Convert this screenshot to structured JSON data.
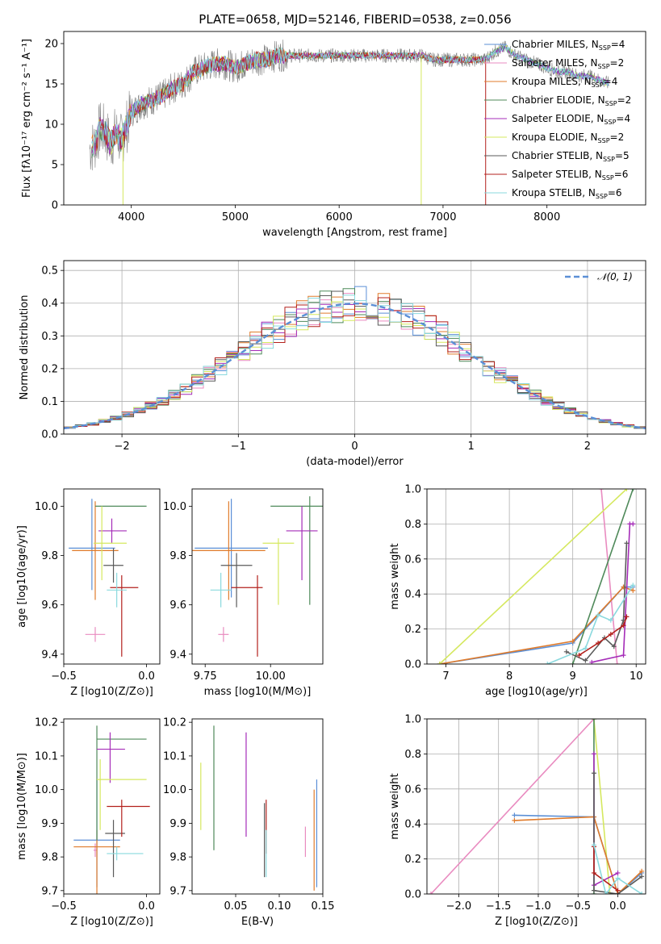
{
  "figure_title": "PLATE=0658, MJD=52146, FIBERID=0538, z=0.056",
  "colors": {
    "chabrier_miles": "#5b8fd6",
    "salpeter_miles": "#e98bc0",
    "kroupa_miles": "#e07b2b",
    "chabrier_elodie": "#4f8a5a",
    "salpeter_elodie": "#a52cb8",
    "kroupa_elodie": "#d5e85f",
    "chabrier_stelib": "#5a5a5a",
    "salpeter_stelib": "#b3201c",
    "kroupa_stelib": "#8ad9de",
    "data": "#808080",
    "normal": "#5b8fd6"
  },
  "chart_data": [
    {
      "id": "spectrum",
      "type": "line",
      "xlabel": "wavelength [Angstrom, rest frame]",
      "ylabel": "Flux [fλ10⁻¹⁷ erg cm⁻² s⁻¹ A⁻¹]",
      "xlim": [
        3350,
        8950
      ],
      "ylim": [
        0,
        21.5
      ],
      "xticks": [
        4000,
        5000,
        6000,
        7000,
        8000
      ],
      "yticks": [
        0,
        5,
        10,
        15,
        20
      ],
      "x": [
        3600,
        3650,
        3700,
        3750,
        3800,
        3850,
        3900,
        3950,
        4000,
        4100,
        4200,
        4300,
        4400,
        4500,
        4600,
        4700,
        4800,
        4900,
        5000,
        5100,
        5200,
        5300,
        5400,
        5500,
        5600,
        5700,
        5800,
        5900,
        6000,
        6100,
        6200,
        6300,
        6400,
        6500,
        6600,
        6700,
        6800,
        6900,
        7000,
        7100,
        7200,
        7300,
        7400,
        7500,
        7600,
        7700,
        7800,
        7900,
        8000,
        8100,
        8200,
        8300,
        8400,
        8500,
        8600
      ],
      "values": [
        7.0,
        7.5,
        9.5,
        9.0,
        7.5,
        9.0,
        8.0,
        9.5,
        11.5,
        12.5,
        13.0,
        13.5,
        14.5,
        15.0,
        16.5,
        17.0,
        17.5,
        17.5,
        17.0,
        17.5,
        18.0,
        18.0,
        18.5,
        18.5,
        18.5,
        18.5,
        18.5,
        18.5,
        18.5,
        18.5,
        18.5,
        18.5,
        18.5,
        18.5,
        18.5,
        18.5,
        18.5,
        18.0,
        18.0,
        18.0,
        18.0,
        18.0,
        18.0,
        19.0,
        19.5,
        18.5,
        18.0,
        17.5,
        17.0,
        16.5,
        16.5,
        16.0,
        16.0,
        15.5,
        15.0
      ],
      "legend": [
        {
          "label": "Chabrier MILES, N",
          "sub": "SSP",
          "tail": "=4",
          "color_key": "chabrier_miles"
        },
        {
          "label": "Salpeter MILES, N",
          "sub": "SSP",
          "tail": "=2",
          "color_key": "salpeter_miles"
        },
        {
          "label": "Kroupa MILES, N",
          "sub": "SSP",
          "tail": "=4",
          "color_key": "kroupa_miles"
        },
        {
          "label": "Chabrier ELODIE, N",
          "sub": "SSP",
          "tail": "=2",
          "color_key": "chabrier_elodie"
        },
        {
          "label": "Salpeter ELODIE, N",
          "sub": "SSP",
          "tail": "=4",
          "color_key": "salpeter_elodie"
        },
        {
          "label": "Kroupa ELODIE, N",
          "sub": "SSP",
          "tail": "=2",
          "color_key": "kroupa_elodie"
        },
        {
          "label": "Chabrier STELIB, N",
          "sub": "SSP",
          "tail": "=5",
          "color_key": "chabrier_stelib"
        },
        {
          "label": "Salpeter STELIB, N",
          "sub": "SSP",
          "tail": "=6",
          "color_key": "salpeter_stelib"
        },
        {
          "label": "Kroupa STELIB, N",
          "sub": "SSP",
          "tail": "=6",
          "color_key": "kroupa_stelib"
        }
      ],
      "legend_position": "upper right",
      "grid": false
    },
    {
      "id": "residuals",
      "type": "histogram",
      "xlabel": "(data-model)/error",
      "ylabel": "Normed distribution",
      "xlim": [
        -2.5,
        2.5
      ],
      "ylim": [
        0,
        0.53
      ],
      "xticks": [
        -2,
        -1,
        0,
        1,
        2
      ],
      "yticks": [
        0.0,
        0.1,
        0.2,
        0.3,
        0.4,
        0.5
      ],
      "bin_width": 0.1,
      "legend": [
        {
          "label": "𝒩(0, 1)",
          "color_key": "normal"
        }
      ],
      "legend_position": "upper right",
      "grid": true
    },
    {
      "id": "age_vs_Z",
      "type": "errorbar",
      "xlabel": "Z [log10(Z/Z⊙)]",
      "ylabel": "age  [log10(age/yr)]",
      "xlim": [
        -0.5,
        0.08
      ],
      "ylim": [
        9.36,
        10.07
      ],
      "xticks": [
        -0.5,
        0.0
      ],
      "yticks": [
        9.4,
        9.6,
        9.8,
        10.0
      ],
      "points": [
        {
          "color_key": "chabrier_miles",
          "x": -0.33,
          "xerr": [
            0.14,
            0.14
          ],
          "y": 9.83,
          "yerr": [
            0.17,
            0.2
          ]
        },
        {
          "color_key": "salpeter_miles",
          "x": -0.31,
          "xerr": [
            0.06,
            0.06
          ],
          "y": 9.48,
          "yerr": [
            0.03,
            0.03
          ]
        },
        {
          "color_key": "kroupa_miles",
          "x": -0.31,
          "xerr": [
            0.14,
            0.14
          ],
          "y": 9.82,
          "yerr": [
            0.2,
            0.2
          ]
        },
        {
          "color_key": "chabrier_elodie",
          "x": -0.18,
          "xerr": [
            0.13,
            0.18
          ],
          "y": 10.0,
          "yerr": [
            0.0,
            0.0
          ]
        },
        {
          "color_key": "salpeter_elodie",
          "x": -0.21,
          "xerr": [
            0.08,
            0.09
          ],
          "y": 9.9,
          "yerr": [
            0.05,
            0.05
          ]
        },
        {
          "color_key": "kroupa_elodie",
          "x": -0.27,
          "xerr": [
            0.05,
            0.15
          ],
          "y": 9.85,
          "yerr": [
            0.15,
            0.15
          ]
        },
        {
          "color_key": "chabrier_stelib",
          "x": -0.2,
          "xerr": [
            0.06,
            0.06
          ],
          "y": 9.76,
          "yerr": [
            0.07,
            0.07
          ]
        },
        {
          "color_key": "salpeter_stelib",
          "x": -0.15,
          "xerr": [
            0.07,
            0.1
          ],
          "y": 9.67,
          "yerr": [
            0.28,
            0.05
          ]
        },
        {
          "color_key": "kroupa_stelib",
          "x": -0.18,
          "xerr": [
            0.06,
            0.06
          ],
          "y": 9.66,
          "yerr": [
            0.07,
            0.07
          ]
        }
      ]
    },
    {
      "id": "age_vs_mass",
      "type": "errorbar",
      "xlabel": "mass [log10(M/M⊙)]",
      "ylabel": "",
      "xlim": [
        9.7,
        10.2
      ],
      "ylim": [
        9.36,
        10.07
      ],
      "xticks": [
        9.75,
        10.0
      ],
      "yticks": [
        9.4,
        9.6,
        9.8,
        10.0
      ],
      "points": [
        {
          "color_key": "chabrier_miles",
          "x": 9.85,
          "xerr": [
            0.14,
            0.14
          ],
          "y": 9.83,
          "yerr": [
            0.2,
            0.2
          ]
        },
        {
          "color_key": "salpeter_miles",
          "x": 9.82,
          "xerr": [
            0.02,
            0.02
          ],
          "y": 9.48,
          "yerr": [
            0.03,
            0.03
          ]
        },
        {
          "color_key": "kroupa_miles",
          "x": 9.84,
          "xerr": [
            0.14,
            0.14
          ],
          "y": 9.82,
          "yerr": [
            0.2,
            0.2
          ]
        },
        {
          "color_key": "chabrier_elodie",
          "x": 10.15,
          "xerr": [
            0.15,
            0.05
          ],
          "y": 10.0,
          "yerr": [
            0.4,
            0.04
          ]
        },
        {
          "color_key": "salpeter_elodie",
          "x": 10.12,
          "xerr": [
            0.06,
            0.06
          ],
          "y": 9.9,
          "yerr": [
            0.2,
            0.1
          ]
        },
        {
          "color_key": "kroupa_elodie",
          "x": 10.03,
          "xerr": [
            0.06,
            0.06
          ],
          "y": 9.85,
          "yerr": [
            0.25,
            0.02
          ]
        },
        {
          "color_key": "chabrier_stelib",
          "x": 9.87,
          "xerr": [
            0.06,
            0.06
          ],
          "y": 9.76,
          "yerr": [
            0.17,
            0.05
          ]
        },
        {
          "color_key": "salpeter_stelib",
          "x": 9.95,
          "xerr": [
            0.1,
            0.02
          ],
          "y": 9.67,
          "yerr": [
            0.28,
            0.05
          ]
        },
        {
          "color_key": "kroupa_stelib",
          "x": 9.81,
          "xerr": [
            0.04,
            0.04
          ],
          "y": 9.66,
          "yerr": [
            0.07,
            0.07
          ]
        }
      ]
    },
    {
      "id": "mass_weight_vs_age",
      "type": "line",
      "xlabel": "age  [log10(age/yr)]",
      "ylabel": "mass weight",
      "xlim": [
        6.7,
        10.15
      ],
      "ylim": [
        0,
        1.0
      ],
      "xticks": [
        7,
        8,
        9,
        10
      ],
      "yticks": [
        0.0,
        0.2,
        0.4,
        0.6,
        0.8,
        1.0
      ],
      "series": [
        {
          "color_key": "chabrier_miles",
          "x": [
            6.9,
            9.0,
            9.8,
            9.95
          ],
          "y": [
            0.0,
            0.12,
            0.44,
            0.44
          ]
        },
        {
          "color_key": "salpeter_miles",
          "x": [
            9.45,
            9.7
          ],
          "y": [
            1.0,
            0.0
          ]
        },
        {
          "color_key": "kroupa_miles",
          "x": [
            6.9,
            9.0,
            9.8,
            9.95
          ],
          "y": [
            0.0,
            0.13,
            0.44,
            0.42
          ]
        },
        {
          "color_key": "chabrier_elodie",
          "x": [
            9.0,
            9.95
          ],
          "y": [
            0.0,
            1.0
          ]
        },
        {
          "color_key": "salpeter_elodie",
          "x": [
            9.3,
            9.8,
            9.9,
            9.95
          ],
          "y": [
            0.01,
            0.05,
            0.8,
            0.8
          ]
        },
        {
          "color_key": "kroupa_elodie",
          "x": [
            6.9,
            9.85
          ],
          "y": [
            0.0,
            1.0
          ]
        },
        {
          "color_key": "chabrier_stelib",
          "x": [
            8.9,
            9.2,
            9.5,
            9.65,
            9.8,
            9.85
          ],
          "y": [
            0.07,
            0.02,
            0.15,
            0.1,
            0.25,
            0.69
          ]
        },
        {
          "color_key": "salpeter_stelib",
          "x": [
            9.1,
            9.4,
            9.6,
            9.8,
            9.85
          ],
          "y": [
            0.05,
            0.12,
            0.17,
            0.22,
            0.27
          ]
        },
        {
          "color_key": "kroupa_stelib",
          "x": [
            8.6,
            9.2,
            9.4,
            9.6,
            9.95
          ],
          "y": [
            0.0,
            0.09,
            0.28,
            0.25,
            0.45
          ]
        }
      ],
      "grid": true
    },
    {
      "id": "mass_vs_Z",
      "type": "errorbar",
      "xlabel": "Z [log10(Z/Z⊙)]",
      "ylabel": "mass [log10(M/M⊙)]",
      "xlim": [
        -0.5,
        0.08
      ],
      "ylim": [
        9.69,
        10.21
      ],
      "xticks": [
        -0.5,
        0.0
      ],
      "yticks": [
        9.7,
        9.8,
        9.9,
        10.0,
        10.1,
        10.2
      ],
      "points": [
        {
          "color_key": "chabrier_miles",
          "x": -0.3,
          "xerr": [
            0.14,
            0.14
          ],
          "y": 9.85,
          "yerr": [
            0.14,
            0.18
          ]
        },
        {
          "color_key": "salpeter_miles",
          "x": -0.31,
          "xerr": [
            0.01,
            0.01
          ],
          "y": 9.82,
          "yerr": [
            0.02,
            0.02
          ]
        },
        {
          "color_key": "kroupa_miles",
          "x": -0.3,
          "xerr": [
            0.14,
            0.14
          ],
          "y": 9.83,
          "yerr": [
            0.14,
            0.05
          ]
        },
        {
          "color_key": "chabrier_elodie",
          "x": -0.3,
          "xerr": [
            0.0,
            0.3
          ],
          "y": 10.15,
          "yerr": [
            0.3,
            0.04
          ]
        },
        {
          "color_key": "salpeter_elodie",
          "x": -0.22,
          "xerr": [
            0.08,
            0.09
          ],
          "y": 10.12,
          "yerr": [
            0.1,
            0.05
          ]
        },
        {
          "color_key": "kroupa_elodie",
          "x": -0.28,
          "xerr": [
            0.02,
            0.28
          ],
          "y": 10.03,
          "yerr": [
            0.15,
            0.06
          ]
        },
        {
          "color_key": "chabrier_stelib",
          "x": -0.2,
          "xerr": [
            0.05,
            0.07
          ],
          "y": 9.87,
          "yerr": [
            0.13,
            0.04
          ]
        },
        {
          "color_key": "salpeter_stelib",
          "x": -0.15,
          "xerr": [
            0.09,
            0.17
          ],
          "y": 9.95,
          "yerr": [
            0.09,
            0.02
          ]
        },
        {
          "color_key": "kroupa_stelib",
          "x": -0.18,
          "xerr": [
            0.06,
            0.16
          ],
          "y": 9.81,
          "yerr": [
            0.02,
            0.02
          ]
        }
      ]
    },
    {
      "id": "mass_vs_EBV",
      "type": "errorbar",
      "xlabel": "E(B-V)",
      "ylabel": "",
      "xlim": [
        0.0,
        0.15
      ],
      "ylim": [
        9.69,
        10.21
      ],
      "xticks": [
        0.05,
        0.1,
        0.15
      ],
      "yticks": [
        9.7,
        9.8,
        9.9,
        10.0,
        10.1,
        10.2
      ],
      "points": [
        {
          "color_key": "chabrier_miles",
          "x": 0.143,
          "y": 9.85,
          "yerr": [
            0.14,
            0.18
          ]
        },
        {
          "color_key": "salpeter_miles",
          "x": 0.13,
          "y": 9.82,
          "yerr": [
            0.02,
            0.07
          ]
        },
        {
          "color_key": "kroupa_miles",
          "x": 0.14,
          "y": 9.83,
          "yerr": [
            0.13,
            0.17
          ]
        },
        {
          "color_key": "chabrier_elodie",
          "x": 0.025,
          "y": 10.0,
          "yerr": [
            0.18,
            0.19
          ]
        },
        {
          "color_key": "salpeter_elodie",
          "x": 0.062,
          "y": 10.0,
          "yerr": [
            0.14,
            0.17
          ]
        },
        {
          "color_key": "kroupa_elodie",
          "x": 0.01,
          "y": 9.98,
          "yerr": [
            0.1,
            0.1
          ]
        },
        {
          "color_key": "chabrier_stelib",
          "x": 0.083,
          "y": 9.85,
          "yerr": [
            0.11,
            0.11
          ]
        },
        {
          "color_key": "salpeter_stelib",
          "x": 0.085,
          "y": 9.9,
          "yerr": [
            0.09,
            0.07
          ]
        },
        {
          "color_key": "kroupa_stelib",
          "x": 0.085,
          "y": 9.81,
          "yerr": [
            0.07,
            0.07
          ]
        }
      ]
    },
    {
      "id": "mass_weight_vs_Z",
      "type": "line",
      "xlabel": "Z [log10(Z/Z⊙)]",
      "ylabel": "mass weight",
      "xlim": [
        -2.4,
        0.35
      ],
      "ylim": [
        0,
        1.0
      ],
      "xticks": [
        -2.0,
        -1.5,
        -1.0,
        -0.5,
        0.0
      ],
      "yticks": [
        0.0,
        0.2,
        0.4,
        0.6,
        0.8,
        1.0
      ],
      "series": [
        {
          "color_key": "salpeter_miles",
          "x": [
            -2.35,
            -0.3
          ],
          "y": [
            0.0,
            1.0
          ]
        },
        {
          "color_key": "kroupa_elodie",
          "x": [
            -0.3,
            -0.1,
            0.0
          ],
          "y": [
            1.0,
            0.0,
            0.0
          ]
        },
        {
          "color_key": "chabrier_elodie",
          "x": [
            -0.3,
            -0.3
          ],
          "y": [
            1.0,
            0.0
          ]
        },
        {
          "color_key": "chabrier_miles",
          "x": [
            -1.3,
            -0.3,
            0.0,
            0.3
          ],
          "y": [
            0.45,
            0.44,
            0.0,
            0.12
          ]
        },
        {
          "color_key": "kroupa_miles",
          "x": [
            -1.3,
            -0.3,
            0.0,
            0.3
          ],
          "y": [
            0.42,
            0.44,
            0.0,
            0.13
          ]
        },
        {
          "color_key": "salpeter_elodie",
          "x": [
            -0.3,
            -0.3,
            0.0
          ],
          "y": [
            0.8,
            0.05,
            0.12
          ]
        },
        {
          "color_key": "chabrier_stelib",
          "x": [
            -0.3,
            -0.3,
            0.0,
            0.3
          ],
          "y": [
            0.69,
            0.02,
            0.0,
            0.1
          ]
        },
        {
          "color_key": "salpeter_stelib",
          "x": [
            -0.3,
            -0.3,
            0.0
          ],
          "y": [
            0.27,
            0.12,
            0.02
          ]
        },
        {
          "color_key": "kroupa_stelib",
          "x": [
            -0.3,
            -0.15,
            0.0,
            0.3
          ],
          "y": [
            0.28,
            0.0,
            0.09,
            0.0
          ]
        }
      ],
      "grid": true
    }
  ]
}
